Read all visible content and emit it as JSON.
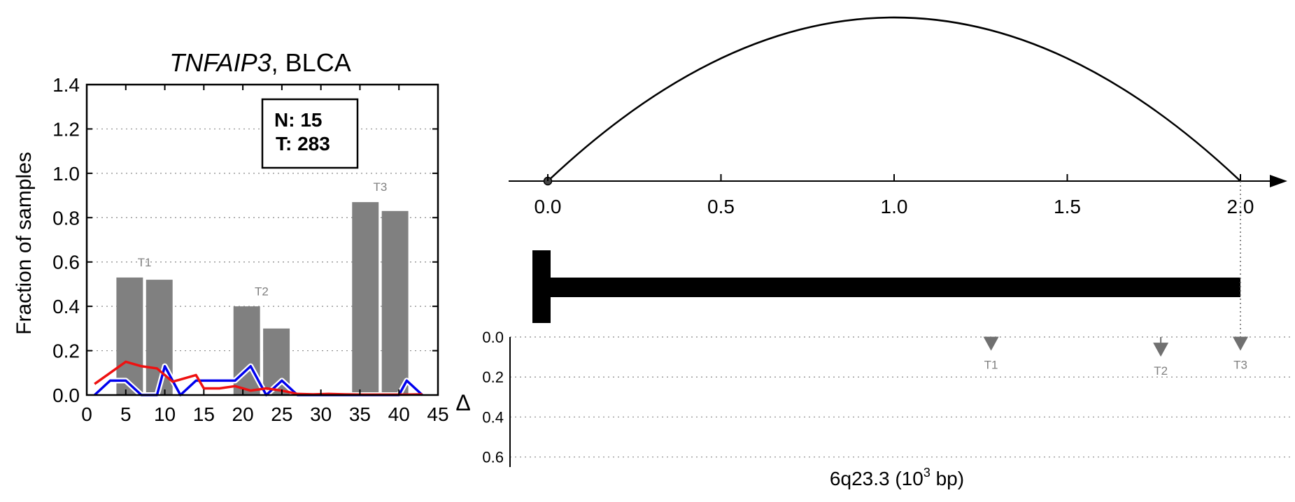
{
  "colors": {
    "bar": "#808080",
    "normal_line": "#0000ee",
    "tumor_line": "#ee1111",
    "annotation_text": "#808080",
    "arrow_marker": "#707070"
  },
  "chart_data": [
    {
      "type": "bar",
      "title_gene": "TNFAIP3",
      "title_rest": ", BLCA",
      "ylabel": "Fraction of samples",
      "xlim": [
        0,
        45
      ],
      "ylim": [
        0,
        1.4
      ],
      "xticks": [
        "0",
        "5",
        "10",
        "15",
        "20",
        "25",
        "30",
        "35",
        "40",
        "45"
      ],
      "yticks": [
        "0.0",
        "0.2",
        "0.4",
        "0.6",
        "0.8",
        "1.0",
        "1.2",
        "1.4"
      ],
      "grid": "horizontal-dotted",
      "legend_box": {
        "line1": "N: 15",
        "line2": "T: 283"
      },
      "bars": [
        {
          "x": 5.5,
          "height": 0.53
        },
        {
          "x": 9.3,
          "height": 0.52
        },
        {
          "x": 20.5,
          "height": 0.4
        },
        {
          "x": 24.3,
          "height": 0.3
        },
        {
          "x": 35.7,
          "height": 0.87
        },
        {
          "x": 39.5,
          "height": 0.83
        }
      ],
      "bar_width": 3.4,
      "bar_labels": [
        {
          "label": "T1",
          "x": 7.4,
          "y": 0.58
        },
        {
          "label": "T2",
          "x": 22.4,
          "y": 0.45
        },
        {
          "label": "T3",
          "x": 37.6,
          "y": 0.92
        }
      ],
      "series": [
        {
          "name": "N",
          "color": "#0000ee",
          "x": [
            1,
            3,
            5,
            7,
            9,
            10,
            12,
            14,
            16,
            18,
            19,
            21,
            23,
            25,
            27,
            29,
            31,
            33,
            35,
            37,
            39,
            40,
            41,
            43
          ],
          "y": [
            0,
            0.065,
            0.065,
            0,
            0,
            0.13,
            0,
            0.065,
            0.065,
            0.065,
            0.065,
            0.13,
            0,
            0.065,
            0,
            0,
            0,
            0,
            0,
            0,
            0,
            0,
            0.065,
            0
          ]
        },
        {
          "name": "T",
          "color": "#ee1111",
          "x": [
            1,
            3,
            5,
            7,
            9,
            11,
            12,
            14,
            15,
            17,
            19,
            21,
            23,
            25,
            27,
            29,
            31,
            33,
            35,
            37,
            39,
            41,
            43
          ],
          "y": [
            0.05,
            0.1,
            0.15,
            0.13,
            0.12,
            0.06,
            0.07,
            0.09,
            0.03,
            0.03,
            0.04,
            0.02,
            0.03,
            0.02,
            0.005,
            0.003,
            0.005,
            0.003,
            0.002,
            0.002,
            0.002,
            0.002,
            0.003
          ]
        }
      ]
    },
    {
      "type": "line",
      "description_free": true,
      "xlim": [
        0,
        2.0
      ],
      "xticks": [
        "0.0",
        "0.5",
        "1.0",
        "1.5",
        "2.0"
      ],
      "arc": {
        "start": 0.0,
        "end": 2.0,
        "peak_x": 1.0
      },
      "gene_body": {
        "start": 0.0,
        "end": 2.0
      },
      "xlabel_main": "6q23.3 (10",
      "xlabel_sup": "3",
      "xlabel_tail": " bp)",
      "delta_axis": {
        "label": "Δ",
        "ylim": [
          0,
          0.65
        ],
        "yticks": [
          "0.0",
          "0.2",
          "0.4",
          "0.6"
        ],
        "markers": [
          {
            "label": "T1",
            "x": 1.28,
            "y": 0.03
          },
          {
            "label": "T2",
            "x": 1.77,
            "y": 0.06
          },
          {
            "label": "T3",
            "x": 2.0,
            "y": 0.03
          }
        ]
      }
    }
  ]
}
